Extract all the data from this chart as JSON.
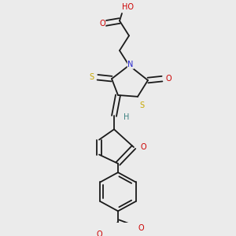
{
  "bg_color": "#ebebeb",
  "bond_color": "#1a1a1a",
  "atom_colors": {
    "O": "#cc0000",
    "N": "#2222cc",
    "S": "#c8a800",
    "H": "#3a8080",
    "C": "#1a1a1a"
  },
  "lw": 1.3,
  "fs": 7.0
}
